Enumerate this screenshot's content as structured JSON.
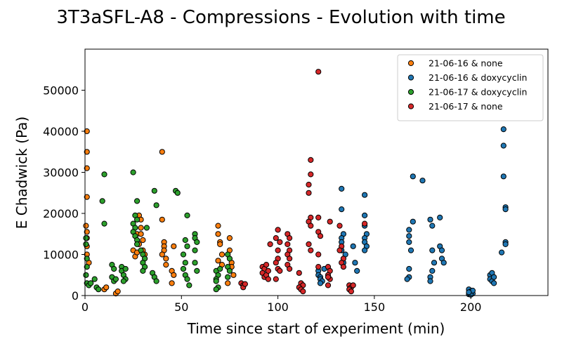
{
  "chart_data": {
    "type": "scatter",
    "title": "3T3aSFL-A8 - Compressions - Evolution with time",
    "xlabel": "Time since start of experiment (min)",
    "ylabel": "E Chadwick (Pa)",
    "xlim": [
      0,
      240
    ],
    "ylim": [
      0,
      60000
    ],
    "xticks": [
      0,
      50,
      100,
      150,
      200
    ],
    "yticks": [
      0,
      10000,
      20000,
      30000,
      40000,
      50000
    ],
    "grid": false,
    "legend_position": "top-right",
    "series": [
      {
        "name": "21-06-16 & none",
        "color": "#ff7f0e",
        "points": [
          [
            1,
            40000
          ],
          [
            1,
            35000
          ],
          [
            1,
            31000
          ],
          [
            1,
            24000
          ],
          [
            0.5,
            17000
          ],
          [
            1,
            15500
          ],
          [
            1,
            14000
          ],
          [
            1,
            12000
          ],
          [
            1,
            10000
          ],
          [
            2,
            8000
          ],
          [
            10,
            1500
          ],
          [
            11,
            2000
          ],
          [
            16,
            500
          ],
          [
            17,
            1000
          ],
          [
            25,
            11000
          ],
          [
            26,
            9500
          ],
          [
            27,
            10500
          ],
          [
            27,
            15000
          ],
          [
            28,
            19500
          ],
          [
            29,
            18500
          ],
          [
            29,
            16500
          ],
          [
            29,
            15000
          ],
          [
            30,
            13500
          ],
          [
            28,
            12500
          ],
          [
            30,
            11000
          ],
          [
            31,
            10000
          ],
          [
            40,
            35000
          ],
          [
            40,
            18500
          ],
          [
            41,
            13000
          ],
          [
            41,
            12000
          ],
          [
            41,
            11000
          ],
          [
            40,
            10000
          ],
          [
            42,
            9000
          ],
          [
            42,
            7500
          ],
          [
            46,
            12000
          ],
          [
            45,
            6000
          ],
          [
            46,
            5000
          ],
          [
            45,
            3000
          ],
          [
            69,
            17000
          ],
          [
            69,
            15000
          ],
          [
            70,
            13000
          ],
          [
            70,
            12500
          ],
          [
            71,
            10000
          ],
          [
            69,
            8500
          ],
          [
            71,
            7500
          ],
          [
            75,
            14000
          ],
          [
            75,
            11000
          ],
          [
            76,
            8000
          ],
          [
            76,
            7000
          ],
          [
            77,
            5000
          ],
          [
            74,
            3000
          ]
        ]
      },
      {
        "name": "21-06-16 & doxycyclin",
        "color": "#1f77b4",
        "points": [
          [
            121,
            6000
          ],
          [
            121,
            5000
          ],
          [
            122,
            4500
          ],
          [
            122,
            4000
          ],
          [
            123,
            3500
          ],
          [
            122,
            3000
          ],
          [
            124,
            6500
          ],
          [
            133,
            26000
          ],
          [
            133,
            21000
          ],
          [
            134,
            15000
          ],
          [
            133,
            14000
          ],
          [
            133,
            13000
          ],
          [
            133,
            11000
          ],
          [
            135,
            10000
          ],
          [
            134,
            8000
          ],
          [
            139,
            12000
          ],
          [
            140,
            8000
          ],
          [
            141,
            6000
          ],
          [
            145,
            24500
          ],
          [
            145,
            19500
          ],
          [
            145,
            17000
          ],
          [
            146,
            15000
          ],
          [
            145,
            14000
          ],
          [
            145,
            13000
          ],
          [
            146,
            12000
          ],
          [
            145,
            11000
          ],
          [
            168,
            16000
          ],
          [
            168,
            14500
          ],
          [
            168,
            13000
          ],
          [
            169,
            11000
          ],
          [
            168,
            6500
          ],
          [
            168,
            4500
          ],
          [
            167,
            4000
          ],
          [
            170,
            29000
          ],
          [
            175,
            28000
          ],
          [
            170,
            18000
          ],
          [
            179,
            18500
          ],
          [
            180,
            17000
          ],
          [
            180,
            11000
          ],
          [
            181,
            8000
          ],
          [
            180,
            6000
          ],
          [
            179,
            4500
          ],
          [
            179,
            3500
          ],
          [
            184,
            19000
          ],
          [
            184,
            12000
          ],
          [
            185,
            11000
          ],
          [
            185,
            9000
          ],
          [
            186,
            8000
          ],
          [
            199,
            1500
          ],
          [
            200,
            1000
          ],
          [
            200,
            800
          ],
          [
            201,
            500
          ],
          [
            199,
            300
          ],
          [
            200,
            200
          ],
          [
            201,
            1200
          ],
          [
            199,
            800
          ],
          [
            210,
            5000
          ],
          [
            210,
            4000
          ],
          [
            211,
            3500
          ],
          [
            212,
            3000
          ],
          [
            211,
            5500
          ],
          [
            212,
            4500
          ],
          [
            217,
            40500
          ],
          [
            217,
            36500
          ],
          [
            217,
            29000
          ],
          [
            218,
            21500
          ],
          [
            218,
            21000
          ],
          [
            218,
            13000
          ],
          [
            218,
            12500
          ],
          [
            216,
            10500
          ]
        ]
      },
      {
        "name": "21-06-17 & doxycyclin",
        "color": "#2ca02c",
        "points": [
          [
            0.5,
            14000
          ],
          [
            0.5,
            12500
          ],
          [
            1,
            9000
          ],
          [
            1,
            7000
          ],
          [
            0.5,
            5000
          ],
          [
            1,
            3000
          ],
          [
            2,
            2500
          ],
          [
            3,
            3000
          ],
          [
            5,
            4000
          ],
          [
            6,
            2000
          ],
          [
            7,
            1500
          ],
          [
            9,
            23000
          ],
          [
            10,
            17500
          ],
          [
            10,
            29500
          ],
          [
            14,
            7500
          ],
          [
            15,
            6500
          ],
          [
            14,
            4500
          ],
          [
            15,
            3500
          ],
          [
            16,
            4000
          ],
          [
            19,
            7000
          ],
          [
            19,
            6000
          ],
          [
            20,
            5000
          ],
          [
            21,
            4000
          ],
          [
            20,
            3500
          ],
          [
            21,
            6500
          ],
          [
            25,
            30000
          ],
          [
            26,
            19500
          ],
          [
            27,
            18500
          ],
          [
            25,
            17500
          ],
          [
            26,
            16500
          ],
          [
            25,
            15500
          ],
          [
            26,
            14500
          ],
          [
            27,
            13500
          ],
          [
            27,
            12500
          ],
          [
            27,
            23000
          ],
          [
            29,
            11000
          ],
          [
            30,
            10000
          ],
          [
            31,
            9000
          ],
          [
            30,
            8000
          ],
          [
            31,
            7000
          ],
          [
            30,
            6000
          ],
          [
            32,
            16500
          ],
          [
            35,
            5500
          ],
          [
            36,
            4500
          ],
          [
            37,
            3500
          ],
          [
            36,
            25500
          ],
          [
            37,
            22000
          ],
          [
            47,
            25500
          ],
          [
            48,
            25000
          ],
          [
            53,
            19500
          ],
          [
            52,
            13500
          ],
          [
            53,
            12000
          ],
          [
            51,
            10000
          ],
          [
            52,
            8000
          ],
          [
            51,
            6500
          ],
          [
            52,
            5000
          ],
          [
            53,
            4000
          ],
          [
            54,
            2500
          ],
          [
            57,
            15000
          ],
          [
            57,
            14000
          ],
          [
            58,
            13000
          ],
          [
            57,
            11000
          ],
          [
            57,
            8000
          ],
          [
            58,
            6000
          ],
          [
            68,
            6000
          ],
          [
            69,
            5000
          ],
          [
            68,
            4000
          ],
          [
            68,
            3500
          ],
          [
            69,
            2000
          ],
          [
            68,
            1500
          ],
          [
            70,
            6500
          ],
          [
            74,
            10000
          ],
          [
            75,
            9000
          ],
          [
            74,
            7000
          ],
          [
            75,
            6000
          ],
          [
            74,
            4500
          ]
        ]
      },
      {
        "name": "21-06-17 & none",
        "color": "#d62728",
        "points": [
          [
            81,
            3000
          ],
          [
            82,
            2500
          ],
          [
            82,
            2000
          ],
          [
            83,
            2800
          ],
          [
            92,
            7000
          ],
          [
            93,
            6500
          ],
          [
            92,
            5500
          ],
          [
            93,
            4500
          ],
          [
            94,
            5000
          ],
          [
            95,
            4000
          ],
          [
            94,
            7500
          ],
          [
            95,
            6000
          ],
          [
            96,
            12500
          ],
          [
            100,
            16000
          ],
          [
            99,
            14000
          ],
          [
            101,
            13000
          ],
          [
            100,
            11000
          ],
          [
            100,
            9000
          ],
          [
            99,
            8000
          ],
          [
            100,
            6500
          ],
          [
            101,
            6000
          ],
          [
            99,
            4000
          ],
          [
            105,
            15000
          ],
          [
            106,
            14000
          ],
          [
            105,
            12500
          ],
          [
            106,
            11000
          ],
          [
            105,
            10000
          ],
          [
            106,
            9000
          ],
          [
            105,
            7500
          ],
          [
            106,
            6500
          ],
          [
            111,
            5500
          ],
          [
            112,
            3000
          ],
          [
            113,
            2500
          ],
          [
            111,
            2000
          ],
          [
            112,
            1500
          ],
          [
            113,
            1000
          ],
          [
            117,
            33000
          ],
          [
            117,
            29500
          ],
          [
            116,
            27000
          ],
          [
            116,
            25000
          ],
          [
            117,
            19000
          ],
          [
            116,
            18000
          ],
          [
            117,
            17000
          ],
          [
            116,
            12500
          ],
          [
            117,
            11000
          ],
          [
            121,
            54500
          ],
          [
            121,
            19000
          ],
          [
            121,
            15500
          ],
          [
            122,
            14500
          ],
          [
            121,
            10000
          ],
          [
            121,
            7000
          ],
          [
            127,
            18000
          ],
          [
            126,
            7000
          ],
          [
            127,
            6000
          ],
          [
            126,
            5000
          ],
          [
            127,
            4000
          ],
          [
            126,
            2500
          ],
          [
            126,
            4500
          ],
          [
            132,
            17000
          ],
          [
            133,
            12000
          ],
          [
            132,
            11000
          ],
          [
            134,
            9000
          ],
          [
            133,
            8000
          ],
          [
            134,
            7000
          ],
          [
            137,
            2500
          ],
          [
            138,
            2000
          ],
          [
            137,
            1500
          ],
          [
            138,
            1000
          ],
          [
            139,
            2500
          ],
          [
            145,
            17500
          ]
        ]
      }
    ]
  }
}
